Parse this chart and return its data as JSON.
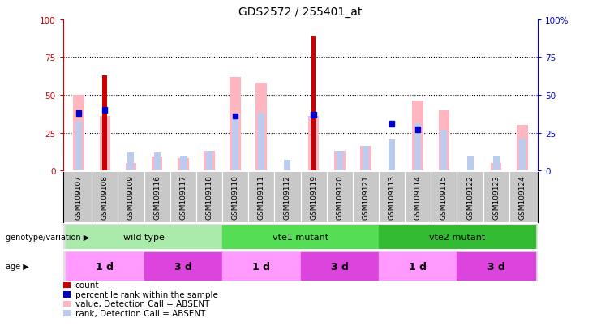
{
  "title": "GDS2572 / 255401_at",
  "samples": [
    "GSM109107",
    "GSM109108",
    "GSM109109",
    "GSM109116",
    "GSM109117",
    "GSM109118",
    "GSM109110",
    "GSM109111",
    "GSM109112",
    "GSM109119",
    "GSM109120",
    "GSM109121",
    "GSM109113",
    "GSM109114",
    "GSM109115",
    "GSM109122",
    "GSM109123",
    "GSM109124"
  ],
  "count": [
    0,
    63,
    0,
    0,
    0,
    0,
    0,
    0,
    0,
    89,
    0,
    0,
    0,
    0,
    0,
    0,
    0,
    0
  ],
  "percentile_rank": [
    38,
    40,
    0,
    0,
    0,
    0,
    36,
    0,
    0,
    37,
    0,
    0,
    31,
    27,
    0,
    0,
    0,
    0
  ],
  "value_absent": [
    50,
    36,
    5,
    9,
    8,
    13,
    62,
    58,
    0,
    36,
    13,
    16,
    0,
    46,
    40,
    0,
    5,
    30
  ],
  "rank_absent": [
    33,
    0,
    12,
    12,
    10,
    13,
    36,
    38,
    7,
    0,
    13,
    16,
    21,
    31,
    27,
    10,
    10,
    21
  ],
  "genotype_groups": [
    {
      "label": "wild type",
      "start": 0,
      "end": 6,
      "color": "#AAEAAA"
    },
    {
      "label": "vte1 mutant",
      "start": 6,
      "end": 12,
      "color": "#55DD55"
    },
    {
      "label": "vte2 mutant",
      "start": 12,
      "end": 18,
      "color": "#33BB33"
    }
  ],
  "age_groups": [
    {
      "label": "1 d",
      "start": 0,
      "end": 3,
      "color": "#FF99FF"
    },
    {
      "label": "3 d",
      "start": 3,
      "end": 6,
      "color": "#DD44DD"
    },
    {
      "label": "1 d",
      "start": 6,
      "end": 9,
      "color": "#FF99FF"
    },
    {
      "label": "3 d",
      "start": 9,
      "end": 12,
      "color": "#DD44DD"
    },
    {
      "label": "1 d",
      "start": 12,
      "end": 15,
      "color": "#FF99FF"
    },
    {
      "label": "3 d",
      "start": 15,
      "end": 18,
      "color": "#DD44DD"
    }
  ],
  "ylim": [
    0,
    100
  ],
  "count_color": "#CC0000",
  "rank_color": "#0000CC",
  "value_absent_color": "#FFB6C1",
  "rank_absent_color": "#BBCCEE",
  "bg_color": "#FFFFFF",
  "tick_color_left": "#CC0000",
  "tick_color_right": "#0000CC",
  "xtick_bg": "#C8C8C8"
}
